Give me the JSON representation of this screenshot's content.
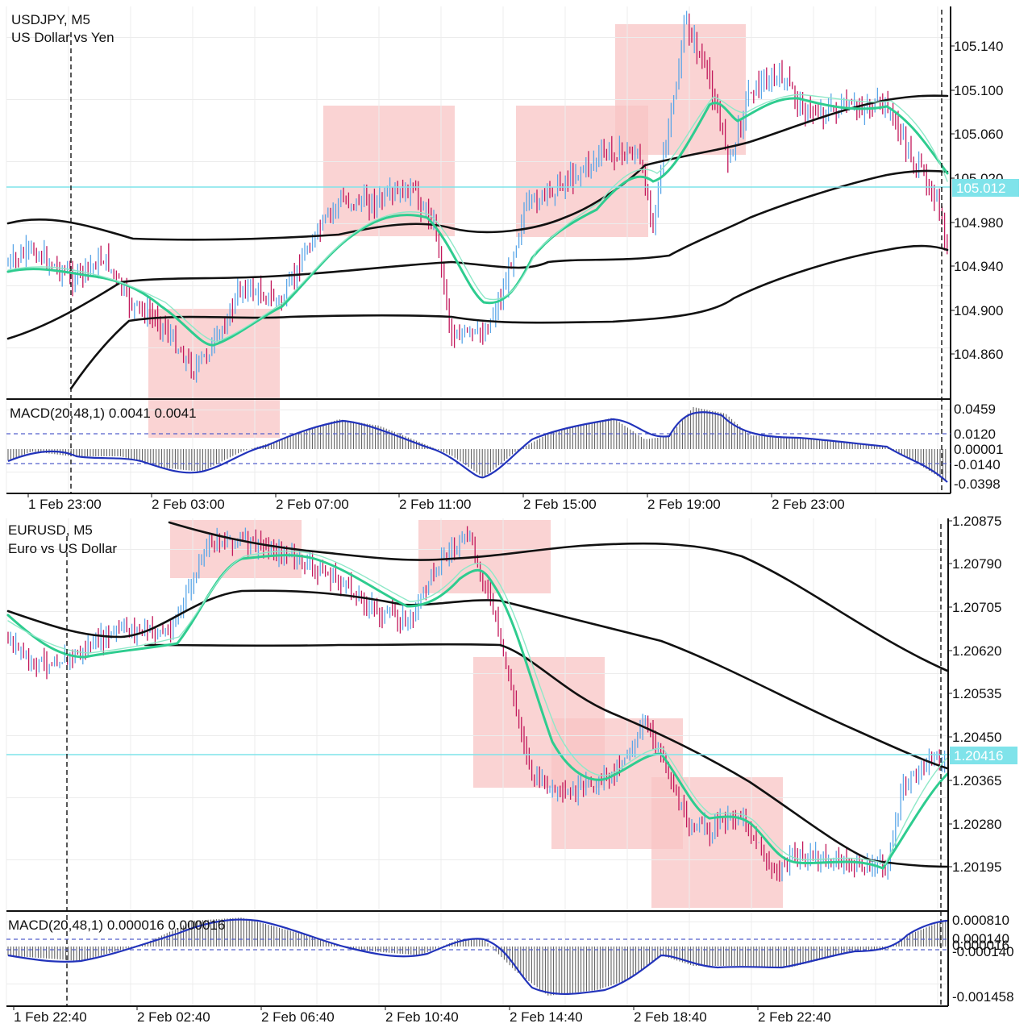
{
  "charts": [
    {
      "symbol": "USDJPY, M5",
      "description": "US Dollar vs Yen",
      "price_labels": [
        "105.140",
        "105.100",
        "105.060",
        "105.020",
        "104.980",
        "104.940",
        "104.900",
        "104.860"
      ],
      "current_price": "105.012",
      "macd_label": "MACD(20,48,1) 0.0041 0.0041",
      "macd_labels": [
        "0.0459",
        "0.0120",
        "0.00001",
        "-0.0140",
        "-0.0398"
      ],
      "time_labels": [
        "1 Feb 23:00",
        "2 Feb 03:00",
        "2 Feb 07:00",
        "2 Feb 11:00",
        "2 Feb 15:00",
        "2 Feb 19:00",
        "2 Feb 23:00"
      ]
    },
    {
      "symbol": "EURUSD, M5",
      "description": "Euro vs US Dollar",
      "price_labels": [
        "1.20875",
        "1.20790",
        "1.20705",
        "1.20620",
        "1.20535",
        "1.20450",
        "1.20365",
        "1.20280",
        "1.20195"
      ],
      "current_price": "1.20416",
      "macd_label": "MACD(20,48,1) 0.000016 0.000016",
      "macd_labels": [
        "0.000810",
        "0.000140",
        "0.000016",
        "-0.000140",
        "-0.001458"
      ],
      "time_labels": [
        "1 Feb 22:40",
        "2 Feb 02:40",
        "2 Feb 06:40",
        "2 Feb 10:40",
        "2 Feb 14:40",
        "2 Feb 18:40",
        "2 Feb 22:40"
      ]
    }
  ],
  "chart_data": [
    {
      "type": "line",
      "title": "USDJPY, M5",
      "subtitle": "US Dollar vs Yen",
      "x": [
        "1 Feb 23:00",
        "2 Feb 03:00",
        "2 Feb 07:00",
        "2 Feb 11:00",
        "2 Feb 15:00",
        "2 Feb 19:00",
        "2 Feb 23:00"
      ],
      "series": [
        {
          "values": [
            104.945,
            104.88,
            104.985,
            104.9,
            104.99,
            105.09,
            105.08
          ]
        }
      ],
      "current_price": 105.012,
      "ylim": [
        104.82,
        105.175
      ],
      "macd": {
        "params": "20,48,1",
        "value": 0.0041,
        "signal": 0.0041,
        "ylim": [
          -0.0398,
          0.0459
        ],
        "levels": [
          0.012,
          -0.014
        ]
      },
      "colors": {
        "price_line": "#7fe3ea",
        "ema_fast": "#2ecc8f",
        "bands": "#111111",
        "zones": "#f7c3c3",
        "macd_line": "#2233bb"
      }
    },
    {
      "type": "line",
      "title": "EURUSD, M5",
      "subtitle": "Euro vs US Dollar",
      "x": [
        "1 Feb 22:40",
        "2 Feb 02:40",
        "2 Feb 06:40",
        "2 Feb 10:40",
        "2 Feb 14:40",
        "2 Feb 18:40",
        "2 Feb 22:40"
      ],
      "series": [
        {
          "values": [
            1.2061,
            1.2068,
            1.2081,
            1.2077,
            1.2035,
            1.204,
            1.2021
          ]
        }
      ],
      "current_price": 1.20416,
      "ylim": [
        1.2014,
        1.2088
      ],
      "macd": {
        "params": "20,48,1",
        "value": 1.6e-05,
        "signal": 1.6e-05,
        "ylim": [
          -0.001458,
          0.00081
        ],
        "levels": [
          0.00014,
          -0.00014
        ]
      },
      "colors": {
        "price_line": "#7fe3ea",
        "ema_fast": "#2ecc8f",
        "bands": "#111111",
        "zones": "#f7c3c3",
        "macd_line": "#2233bb"
      }
    }
  ]
}
